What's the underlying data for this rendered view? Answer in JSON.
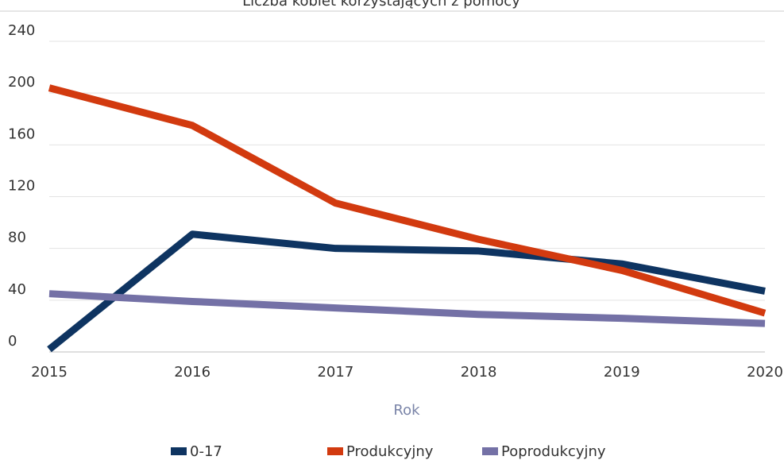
{
  "chart_data": {
    "type": "line",
    "title": "Liczba kobiet korzystających z pomocy",
    "x_label": "Rok",
    "x": [
      2015,
      2016,
      2017,
      2018,
      2019,
      2020
    ],
    "xlim": [
      2015,
      2020
    ],
    "xticks": [
      2015,
      2016,
      2017,
      2018,
      2019,
      2020
    ],
    "ylim": [
      0,
      240
    ],
    "yticks": [
      0,
      40,
      80,
      120,
      160,
      200,
      240
    ],
    "grid": true,
    "legend": "bottom",
    "series": [
      {
        "name": "0-17",
        "color": "#0e3461",
        "values": [
          2,
          91,
          80,
          78,
          68,
          47
        ]
      },
      {
        "name": "Produkcyjny",
        "color": "#d23a0f",
        "values": [
          204,
          175,
          115,
          87,
          63,
          30
        ]
      },
      {
        "name": "Poprodukcyjny",
        "color": "#7471a6",
        "values": [
          45,
          39,
          34,
          29,
          26,
          22
        ]
      }
    ]
  }
}
